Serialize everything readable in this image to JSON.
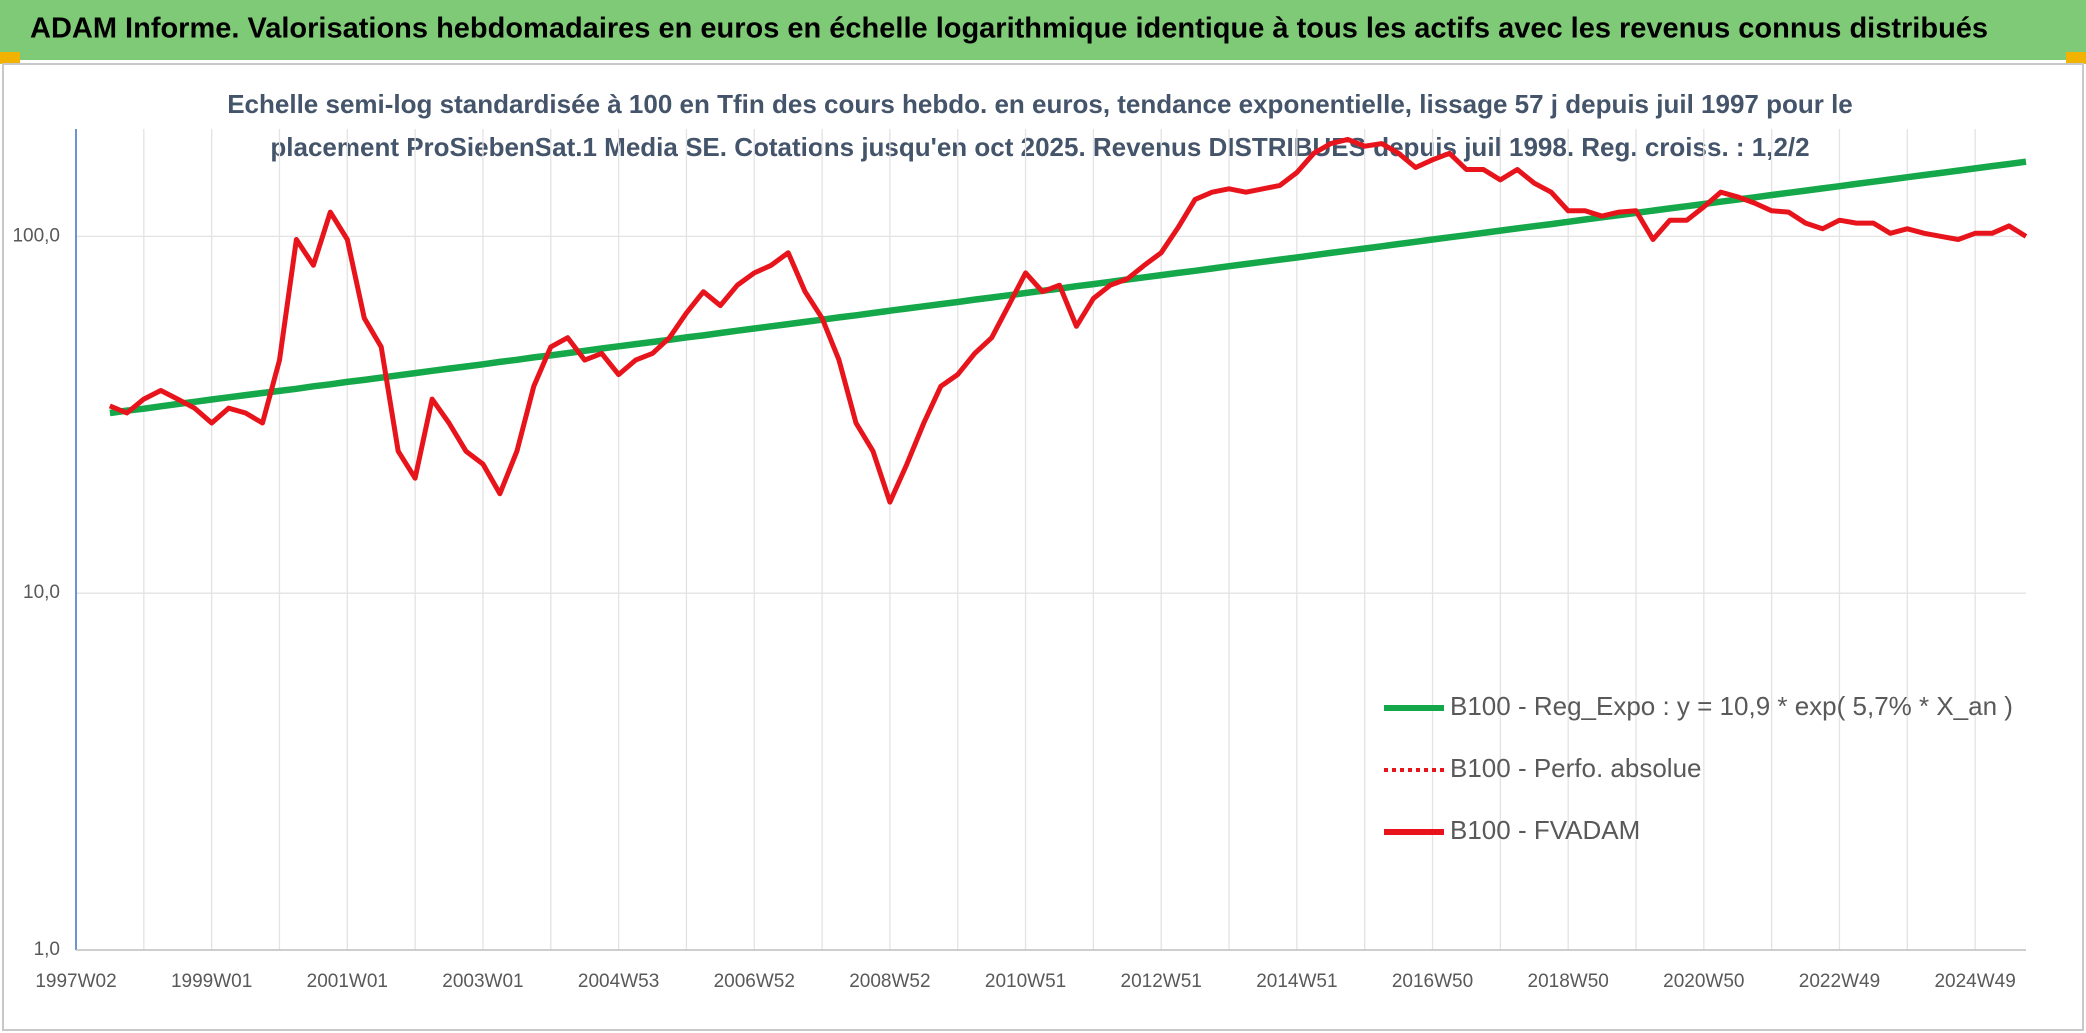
{
  "header": {
    "title": "ADAM Informe. Valorisations hebdomadaires en euros en échelle logarithmique identique à tous les actifs avec les revenus connus distribués"
  },
  "chart_data": {
    "type": "line",
    "title": "Echelle semi-log standardisée à 100 en Tfin des cours hebdo. en euros, tendance exponentielle, lissage 57 j depuis juil 1997 pour le",
    "subtitle": "placement ProSiebenSat.1 Media SE. Cotations jusqu'en oct 2025. Revenus DISTRIBUES depuis juil 1998. Reg. croiss. : 1,2/2",
    "log_y": true,
    "grid": true,
    "legend": "right",
    "ylim": [
      1,
      200
    ],
    "yticks": [
      {
        "value": 1,
        "label": "1,0"
      },
      {
        "value": 10,
        "label": "10,0"
      },
      {
        "value": 100,
        "label": "100,0"
      }
    ],
    "categories": [
      "1997W02",
      null,
      null,
      null,
      null,
      null,
      null,
      null,
      "1999W01",
      null,
      null,
      null,
      null,
      null,
      null,
      null,
      "2001W01",
      null,
      null,
      null,
      null,
      null,
      null,
      null,
      "2003W01",
      null,
      null,
      null,
      null,
      null,
      null,
      null,
      "2004W53",
      null,
      null,
      null,
      null,
      null,
      null,
      null,
      "2006W52",
      null,
      null,
      null,
      null,
      null,
      null,
      null,
      "2008W52",
      null,
      null,
      null,
      null,
      null,
      null,
      null,
      "2010W51",
      null,
      null,
      null,
      null,
      null,
      null,
      null,
      "2012W51",
      null,
      null,
      null,
      null,
      null,
      null,
      null,
      "2014W51",
      null,
      null,
      null,
      null,
      null,
      null,
      null,
      "2016W50",
      null,
      null,
      null,
      null,
      null,
      null,
      null,
      "2018W50",
      null,
      null,
      null,
      null,
      null,
      null,
      null,
      "2020W50",
      null,
      null,
      null,
      null,
      null,
      null,
      null,
      "2022W49",
      null,
      null,
      null,
      null,
      null,
      null,
      null,
      "2024W49",
      null,
      null,
      null
    ],
    "series": [
      {
        "name": "B100 - Reg_Expo : y = 10,9 * exp( 5,7% *  X_an )",
        "color": "#14a84a",
        "style": "solid",
        "values": [
          null,
          null,
          32.0,
          32.5,
          32.9,
          33.4,
          33.9,
          34.4,
          34.9,
          35.4,
          35.9,
          36.4,
          36.9,
          37.4,
          38.0,
          38.5,
          39.1,
          39.6,
          40.2,
          40.8,
          41.4,
          42.0,
          42.6,
          43.2,
          43.8,
          44.5,
          45.1,
          45.8,
          46.4,
          47.1,
          47.8,
          48.5,
          49.2,
          49.9,
          50.6,
          51.3,
          52.1,
          52.8,
          53.6,
          54.4,
          55.2,
          56.0,
          56.8,
          57.6,
          58.4,
          59.3,
          60.1,
          61.0,
          61.9,
          62.8,
          63.7,
          64.6,
          65.5,
          66.5,
          67.4,
          68.4,
          69.4,
          70.4,
          71.4,
          72.5,
          73.5,
          74.6,
          75.7,
          76.8,
          77.9,
          79.0,
          80.1,
          81.3,
          82.5,
          83.7,
          84.9,
          86.1,
          87.3,
          88.6,
          89.9,
          91.2,
          92.5,
          93.8,
          95.2,
          96.6,
          98.0,
          99.4,
          100.8,
          102.3,
          103.8,
          105.3,
          106.8,
          108.3,
          109.9,
          111.5,
          113.1,
          114.7,
          116.4,
          118.1,
          119.8,
          121.5,
          123.3,
          125.1,
          126.9,
          128.7,
          130.6,
          132.5,
          134.4,
          136.3,
          138.3,
          140.3,
          142.3,
          144.4,
          146.5,
          148.6,
          150.7,
          152.9,
          155.1,
          157.4,
          159.6,
          161.9
        ]
      },
      {
        "name": "B100 - Perfo. absolue",
        "color": "#e8141c",
        "style": "dotted",
        "values": [
          null,
          null,
          33.5,
          32,
          35,
          37,
          35,
          33,
          30,
          33,
          32,
          30,
          45,
          98,
          83,
          117,
          98,
          59,
          49,
          25,
          21,
          35,
          30,
          25,
          23,
          19,
          25,
          38,
          49,
          52,
          45,
          47,
          41,
          45,
          47,
          52,
          61,
          70,
          64,
          73,
          79,
          83,
          90,
          70,
          59,
          45,
          30,
          25,
          18,
          23,
          30,
          38,
          41,
          47,
          52,
          64,
          79,
          70,
          73,
          56,
          67,
          73,
          76,
          83,
          90,
          106,
          127,
          133,
          136,
          133,
          136,
          139,
          151,
          171,
          182,
          187,
          179,
          182,
          171,
          156,
          164,
          171,
          154,
          154,
          144,
          154,
          141,
          133,
          118,
          118,
          114,
          117,
          118,
          98,
          111,
          111,
          121,
          133,
          129,
          124,
          118,
          117,
          109,
          105,
          111,
          109,
          109,
          102,
          105,
          102,
          100,
          98,
          102,
          102,
          107,
          100
        ]
      },
      {
        "name": "B100 - FVADAM",
        "color": "#e8141c",
        "style": "solid",
        "values": [
          null,
          null,
          33.5,
          32,
          35,
          37,
          35,
          33,
          30,
          33,
          32,
          30,
          45,
          98,
          83,
          117,
          98,
          59,
          49,
          25,
          21,
          35,
          30,
          25,
          23,
          19,
          25,
          38,
          49,
          52,
          45,
          47,
          41,
          45,
          47,
          52,
          61,
          70,
          64,
          73,
          79,
          83,
          90,
          70,
          59,
          45,
          30,
          25,
          18,
          23,
          30,
          38,
          41,
          47,
          52,
          64,
          79,
          70,
          73,
          56,
          67,
          73,
          76,
          83,
          90,
          106,
          127,
          133,
          136,
          133,
          136,
          139,
          151,
          171,
          182,
          187,
          179,
          182,
          171,
          156,
          164,
          171,
          154,
          154,
          144,
          154,
          141,
          133,
          118,
          118,
          114,
          117,
          118,
          98,
          111,
          111,
          121,
          133,
          129,
          124,
          118,
          117,
          109,
          105,
          111,
          109,
          109,
          102,
          105,
          102,
          100,
          98,
          102,
          102,
          107,
          100
        ]
      }
    ]
  }
}
